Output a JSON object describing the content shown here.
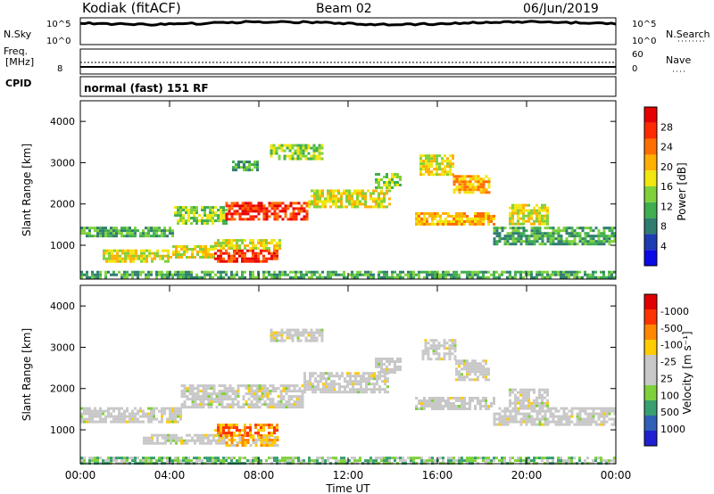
{
  "header": {
    "station": "Kodiak (fitACF)",
    "beam": "Beam 02",
    "date": "06/Jun/2019"
  },
  "status_panels": {
    "nsky_label": "N.Sky",
    "nsky_ticks": [
      "10^5",
      "10^0"
    ],
    "nsearch_label": "N.Search",
    "nsearch_ticks": [
      "10^5",
      "10^0"
    ],
    "freq_label": "Freq.",
    "freq_unit": "[MHz]",
    "freq_ticks": [
      "8"
    ],
    "nave_label": "Nave",
    "nave_ticks": [
      "60",
      "0"
    ],
    "cpid_label": "CPID",
    "cpid_text": "normal (fast) 151 RF"
  },
  "colors": {
    "power_scale": [
      "#0a0ae6",
      "#1e3cb4",
      "#2e7d6e",
      "#3fae4f",
      "#7fd13b",
      "#f2e60f",
      "#ffb000",
      "#ff6e00",
      "#ff2a00",
      "#e60000"
    ],
    "velocity_scale": [
      "#2020d0",
      "#3060b8",
      "#38a070",
      "#7fd13b",
      "#c8c8c8",
      "#c8c8c8",
      "#ffcc00",
      "#ff8800",
      "#ff3300",
      "#e00000"
    ]
  },
  "chart_data": [
    {
      "type": "heatmap",
      "name": "power",
      "ylabel": "Slant Range [km]",
      "xlabel": "",
      "x_ticks": [
        "00:00",
        "04:00",
        "08:00",
        "12:00",
        "16:00",
        "20:00",
        "00:00"
      ],
      "xlim_hours": [
        0,
        24
      ],
      "y_ticks": [
        1000,
        2000,
        3000,
        4000
      ],
      "ylim_km": [
        180,
        4500
      ],
      "colorbar_label": "Power [dB]",
      "colorbar_ticks": [
        "4",
        "8",
        "12",
        "16",
        "20",
        "24",
        "28"
      ],
      "bands": [
        {
          "t": [
            0,
            4.2
          ],
          "r": [
            1200,
            1450
          ],
          "level": 3
        },
        {
          "t": [
            4.2,
            6.5
          ],
          "r": [
            1500,
            1950
          ],
          "level": 4
        },
        {
          "t": [
            6.5,
            10.2
          ],
          "r": [
            1600,
            2050
          ],
          "level": 8
        },
        {
          "t": [
            10.2,
            13.8
          ],
          "r": [
            1900,
            2350
          ],
          "level": 5
        },
        {
          "t": [
            13.2,
            14.3
          ],
          "r": [
            2400,
            2750
          ],
          "level": 4
        },
        {
          "t": [
            1.0,
            4.0
          ],
          "r": [
            600,
            900
          ],
          "level": 5
        },
        {
          "t": [
            4.0,
            6.0
          ],
          "r": [
            700,
            1000
          ],
          "level": 5
        },
        {
          "t": [
            6.0,
            8.8
          ],
          "r": [
            580,
            900
          ],
          "level": 8
        },
        {
          "t": [
            6.0,
            9.0
          ],
          "r": [
            950,
            1150
          ],
          "level": 5
        },
        {
          "t": [
            8.5,
            10.8
          ],
          "r": [
            3100,
            3450
          ],
          "level": 4
        },
        {
          "t": [
            6.8,
            8.0
          ],
          "r": [
            2800,
            3050
          ],
          "level": 3
        },
        {
          "t": [
            15.2,
            16.7
          ],
          "r": [
            2700,
            3200
          ],
          "level": 5
        },
        {
          "t": [
            16.7,
            18.3
          ],
          "r": [
            2250,
            2700
          ],
          "level": 6
        },
        {
          "t": [
            15.0,
            18.5
          ],
          "r": [
            1500,
            1800
          ],
          "level": 6
        },
        {
          "t": [
            18.5,
            24.0
          ],
          "r": [
            1050,
            1450
          ],
          "level": 3
        },
        {
          "t": [
            19.2,
            21.0
          ],
          "r": [
            1500,
            2000
          ],
          "level": 5
        },
        {
          "t": [
            0,
            24.0
          ],
          "r": [
            200,
            380
          ],
          "level": 3
        }
      ]
    },
    {
      "type": "heatmap",
      "name": "velocity",
      "ylabel": "Slant Range [km]",
      "xlabel": "Time UT",
      "x_ticks": [
        "00:00",
        "04:00",
        "08:00",
        "12:00",
        "16:00",
        "20:00",
        "00:00"
      ],
      "xlim_hours": [
        0,
        24
      ],
      "y_ticks": [
        1000,
        2000,
        3000,
        4000
      ],
      "ylim_km": [
        180,
        4500
      ],
      "colorbar_label": "Velocity [m s⁻¹]",
      "colorbar_ticks": [
        "1000",
        "500",
        "100",
        "25",
        "-25",
        "-100",
        "-500",
        "-1000"
      ],
      "bands": [
        {
          "t": [
            0,
            4.5
          ],
          "r": [
            1200,
            1550
          ],
          "level": 4
        },
        {
          "t": [
            4.5,
            10.0
          ],
          "r": [
            1550,
            2100
          ],
          "level": 4
        },
        {
          "t": [
            10.0,
            13.8
          ],
          "r": [
            1900,
            2400
          ],
          "level": 4
        },
        {
          "t": [
            13.2,
            14.3
          ],
          "r": [
            2400,
            2750
          ],
          "level": 4
        },
        {
          "t": [
            2.8,
            6.5
          ],
          "r": [
            700,
            900
          ],
          "level": 4
        },
        {
          "t": [
            6.0,
            8.8
          ],
          "r": [
            850,
            1150
          ],
          "level": 7
        },
        {
          "t": [
            6.5,
            8.8
          ],
          "r": [
            650,
            850
          ],
          "level": 6
        },
        {
          "t": [
            8.5,
            10.8
          ],
          "r": [
            3150,
            3450
          ],
          "level": 4
        },
        {
          "t": [
            15.3,
            16.8
          ],
          "r": [
            2700,
            3200
          ],
          "level": 4
        },
        {
          "t": [
            16.8,
            18.3
          ],
          "r": [
            2200,
            2700
          ],
          "level": 4
        },
        {
          "t": [
            15.0,
            18.5
          ],
          "r": [
            1500,
            1800
          ],
          "level": 4
        },
        {
          "t": [
            18.5,
            24.0
          ],
          "r": [
            1100,
            1550
          ],
          "level": 4
        },
        {
          "t": [
            19.2,
            21.0
          ],
          "r": [
            1550,
            2000
          ],
          "level": 4
        },
        {
          "t": [
            0,
            24.0
          ],
          "r": [
            200,
            350
          ],
          "level": 3
        }
      ]
    }
  ]
}
